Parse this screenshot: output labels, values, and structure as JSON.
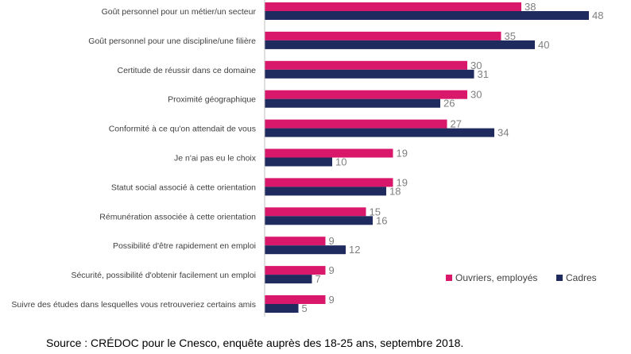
{
  "chart_data": {
    "type": "bar",
    "orientation": "horizontal",
    "categories": [
      "Goût personnel pour un métier/un secteur",
      "Goût personnel pour une discipline/une filière",
      "Certitude de réussir dans ce domaine",
      "Proximité géographique",
      "Conformité à ce qu'on attendait de vous",
      "Je n'ai pas eu le choix",
      "Statut social associé à cette orientation",
      "Rémunération associée à cette orientation",
      "Possibilité d'être rapidement en emploi",
      "Sécurité, possibilité d'obtenir facilement un emploi",
      "Suivre des études dans lesquelles vous retrouveriez certains amis"
    ],
    "series": [
      {
        "name": "Ouvriers, employés",
        "color": "#d9176b",
        "values": [
          38,
          35,
          30,
          30,
          27,
          19,
          19,
          15,
          9,
          9,
          9
        ]
      },
      {
        "name": "Cadres",
        "color": "#1f2a5e",
        "values": [
          48,
          40,
          31,
          26,
          34,
          10,
          18,
          16,
          12,
          7,
          5
        ]
      }
    ],
    "xlim": [
      0,
      55
    ],
    "grid": false,
    "legend_position": "bottom-right",
    "source": "Source : CRÉDOC pour le Cnesco, enquête auprès des 18-25 ans, septembre 2018."
  }
}
